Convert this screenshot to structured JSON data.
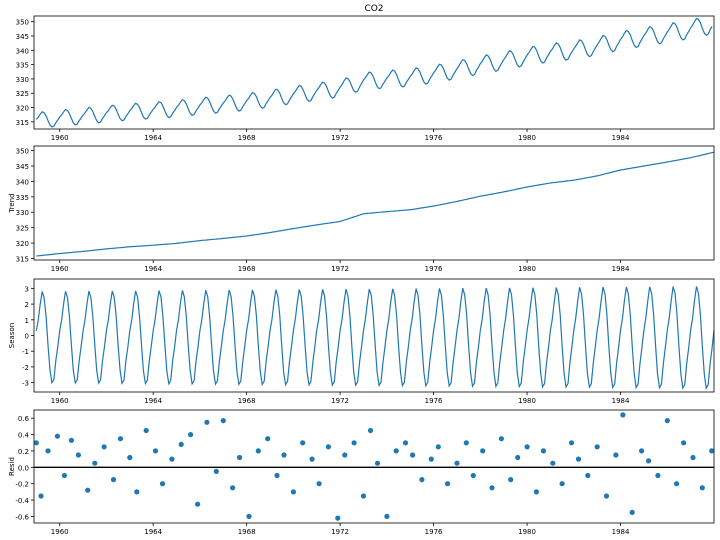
{
  "figure_title": "CO2",
  "chart_data": [
    {
      "type": "line",
      "title": "CO2",
      "ylabel": "",
      "xlim": [
        1958.9,
        1988.0
      ],
      "ylim": [
        312.5,
        352.0
      ],
      "yticks": [
        315,
        320,
        325,
        330,
        335,
        340,
        345,
        350
      ],
      "xticks": [
        1960,
        1964,
        1968,
        1972,
        1976,
        1980,
        1984
      ],
      "line_color": "#1f77b4",
      "series": [
        {
          "trend_start": 315.4,
          "trend_end": 347.8,
          "seasonal_amp_start": 2.8,
          "seasonal_amp_end": 3.3,
          "min_at_start": 313.3,
          "max_at_end": 351.3
        }
      ]
    },
    {
      "type": "line",
      "title": "",
      "ylabel": "Trend",
      "xlim": [
        1958.9,
        1988.0
      ],
      "ylim": [
        314.5,
        351.5
      ],
      "yticks": [
        315,
        320,
        325,
        330,
        335,
        340,
        345,
        350
      ],
      "xticks": [
        1960,
        1964,
        1968,
        1972,
        1976,
        1980,
        1984
      ],
      "line_color": "#1f77b4",
      "series": [
        {
          "x": [
            1959.0,
            1960.0,
            1961.0,
            1962.0,
            1963.0,
            1964.0,
            1965.0,
            1966.0,
            1967.0,
            1968.0,
            1969.0,
            1970.0,
            1971.0,
            1972.0,
            1973.0,
            1974.0,
            1975.0,
            1976.0,
            1977.0,
            1978.0,
            1979.0,
            1980.0,
            1981.0,
            1982.0,
            1983.0,
            1984.0,
            1985.0,
            1986.0,
            1987.0,
            1988.0
          ],
          "values": [
            315.8,
            316.6,
            317.3,
            318.1,
            318.8,
            319.3,
            319.9,
            320.8,
            321.5,
            322.3,
            323.4,
            324.7,
            325.9,
            327.0,
            329.5,
            330.2,
            330.8,
            332.0,
            333.5,
            335.2,
            336.6,
            338.2,
            339.5,
            340.4,
            341.8,
            343.7,
            345.0,
            346.3,
            347.7,
            349.5
          ]
        }
      ]
    },
    {
      "type": "line",
      "title": "",
      "ylabel": "Season",
      "xlim": [
        1958.9,
        1988.0
      ],
      "ylim": [
        -3.6,
        3.6
      ],
      "yticks": [
        -3,
        -2,
        -1,
        0,
        1,
        2,
        3
      ],
      "xticks": [
        1960,
        1964,
        1968,
        1972,
        1976,
        1980,
        1984
      ],
      "line_color": "#1f77b4",
      "series": [
        {
          "period_years": 1,
          "amplitude_start": 2.8,
          "amplitude_end": 3.2,
          "minimum_start": -2.9,
          "minimum_end": -3.3,
          "monthly_shape": [
            0.3,
            1.0,
            2.0,
            2.8,
            2.4,
            1.2,
            -0.6,
            -2.2,
            -3.0,
            -2.8,
            -1.6,
            -0.7
          ]
        }
      ]
    },
    {
      "type": "scatter",
      "title": "",
      "ylabel": "Resid",
      "xlim": [
        1958.9,
        1988.0
      ],
      "ylim": [
        -0.68,
        0.7
      ],
      "yticks": [
        -0.6,
        -0.4,
        -0.2,
        0.0,
        0.2,
        0.4,
        0.6
      ],
      "xticks": [
        1960,
        1964,
        1968,
        1972,
        1976,
        1980,
        1984
      ],
      "marker_color": "#1f77b4",
      "zero_line": true,
      "series": [
        {
          "x": [
            1959.0,
            1959.2,
            1959.5,
            1959.9,
            1960.2,
            1960.5,
            1960.8,
            1961.2,
            1961.5,
            1961.9,
            1962.3,
            1962.6,
            1963.0,
            1963.3,
            1963.7,
            1964.1,
            1964.4,
            1964.8,
            1965.2,
            1965.6,
            1965.9,
            1966.3,
            1966.7,
            1967.0,
            1967.4,
            1967.7,
            1968.1,
            1968.5,
            1968.9,
            1969.3,
            1969.6,
            1970.0,
            1970.4,
            1970.8,
            1971.1,
            1971.5,
            1971.9,
            1972.2,
            1972.6,
            1973.0,
            1973.3,
            1973.6,
            1974.0,
            1974.4,
            1974.8,
            1975.1,
            1975.5,
            1975.9,
            1976.2,
            1976.6,
            1977.0,
            1977.4,
            1977.7,
            1978.1,
            1978.5,
            1978.9,
            1979.3,
            1979.6,
            1980.0,
            1980.4,
            1980.7,
            1981.1,
            1981.5,
            1981.9,
            1982.2,
            1982.6,
            1983.0,
            1983.4,
            1983.8,
            1984.1,
            1984.5,
            1984.9,
            1985.2,
            1985.6,
            1986.0,
            1986.4,
            1986.7,
            1987.1,
            1987.5,
            1987.9
          ],
          "values": [
            0.3,
            -0.35,
            0.2,
            0.38,
            -0.1,
            0.33,
            0.15,
            -0.28,
            0.05,
            0.25,
            -0.15,
            0.35,
            0.12,
            -0.3,
            0.45,
            0.2,
            -0.2,
            0.1,
            0.28,
            0.4,
            -0.45,
            0.55,
            -0.05,
            0.57,
            -0.25,
            0.12,
            -0.6,
            0.2,
            0.35,
            -0.1,
            0.15,
            -0.3,
            0.3,
            0.1,
            -0.2,
            0.25,
            -0.62,
            0.15,
            0.3,
            -0.35,
            0.45,
            0.05,
            -0.6,
            0.2,
            0.3,
            0.15,
            -0.15,
            0.1,
            0.25,
            -0.2,
            0.05,
            0.3,
            -0.1,
            0.2,
            -0.25,
            0.35,
            -0.15,
            0.12,
            0.25,
            -0.3,
            0.2,
            0.05,
            -0.2,
            0.3,
            0.1,
            -0.1,
            0.25,
            -0.35,
            0.15,
            0.64,
            -0.55,
            0.2,
            0.08,
            -0.1,
            0.57,
            -0.2,
            0.3,
            0.12,
            -0.25,
            0.2
          ]
        }
      ]
    }
  ]
}
